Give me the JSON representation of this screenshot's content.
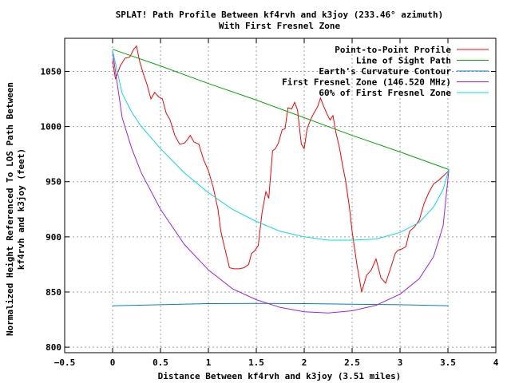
{
  "chart_data": {
    "type": "line",
    "title": "SPLAT! Path Profile Between kf4rvh and k3joy (233.46° azimuth)",
    "subtitle": "With First Fresnel Zone",
    "xlabel": "Distance Between kf4rvh and k3joy (3.51 miles)",
    "ylabel": "Normalized Height Referenced To LOS Path Between kf4rvh and k3joy (feet)",
    "xlim": [
      -0.5,
      4
    ],
    "ylim": [
      795,
      1080
    ],
    "x_ticks": [
      -0.5,
      0,
      0.5,
      1,
      1.5,
      2,
      2.5,
      3,
      3.5,
      4
    ],
    "x_tick_labels": [
      "−0.5",
      "0",
      "0.5",
      "1",
      "1.5",
      "2",
      "2.5",
      "3",
      "3.5",
      "4"
    ],
    "y_ticks": [
      800,
      850,
      900,
      950,
      1000,
      1050
    ],
    "y_tick_labels": [
      "800",
      "850",
      "900",
      "950",
      "1000",
      "1050"
    ],
    "grid": true,
    "legend_position": "top-right",
    "series": [
      {
        "name": "Point-to-Point Profile",
        "color": "#ff0000",
        "x": [
          0.0,
          0.03,
          0.08,
          0.13,
          0.18,
          0.22,
          0.25,
          0.28,
          0.32,
          0.36,
          0.4,
          0.44,
          0.48,
          0.52,
          0.56,
          0.6,
          0.65,
          0.7,
          0.75,
          0.78,
          0.81,
          0.85,
          0.9,
          0.95,
          1.0,
          1.05,
          1.1,
          1.13,
          1.17,
          1.22,
          1.27,
          1.32,
          1.37,
          1.42,
          1.45,
          1.48,
          1.52,
          1.56,
          1.6,
          1.63,
          1.67,
          1.7,
          1.73,
          1.77,
          1.8,
          1.83,
          1.87,
          1.9,
          1.93,
          1.97,
          2.0,
          2.03,
          2.07,
          2.1,
          2.14,
          2.17,
          2.2,
          2.24,
          2.27,
          2.3,
          2.33,
          2.37,
          2.4,
          2.43,
          2.47,
          2.5,
          2.55,
          2.6,
          2.65,
          2.7,
          2.75,
          2.8,
          2.85,
          2.9,
          2.95,
          2.98,
          3.02,
          3.06,
          3.1,
          3.15,
          3.2,
          3.25,
          3.3,
          3.35,
          3.4,
          3.45,
          3.51
        ],
        "y": [
          1060,
          1043,
          1055,
          1062,
          1063,
          1070,
          1073,
          1060,
          1048,
          1038,
          1025,
          1031,
          1027,
          1025,
          1012,
          1006,
          992,
          984,
          985,
          988,
          992,
          986,
          984,
          970,
          960,
          945,
          925,
          905,
          890,
          872,
          871,
          871,
          872,
          875,
          885,
          887,
          892,
          922,
          941,
          935,
          978,
          980,
          985,
          997,
          998,
          1017,
          1016,
          1022,
          1015,
          984,
          980,
          998,
          1007,
          1012,
          1018,
          1026,
          1019,
          1011,
          1006,
          1010,
          995,
          980,
          965,
          952,
          928,
          905,
          875,
          850,
          865,
          870,
          880,
          863,
          858,
          871,
          885,
          888,
          889,
          891,
          905,
          909,
          915,
          930,
          940,
          948,
          951,
          955,
          960
        ]
      },
      {
        "name": "Line of Sight Path",
        "color": "#00aa00",
        "x": [
          0,
          0.5,
          1,
          1.5,
          2,
          2.5,
          3,
          3.51
        ],
        "y": [
          1070,
          1055,
          1039,
          1024,
          1008,
          992,
          977,
          961
        ]
      },
      {
        "name": "Earth's Curvature Contour",
        "color": "#0080c0",
        "x": [
          0,
          0.5,
          1,
          1.5,
          2,
          2.5,
          3,
          3.51
        ],
        "y": [
          837.5,
          838.5,
          839.5,
          839.6,
          839.5,
          839.0,
          838.5,
          837.5
        ]
      },
      {
        "name": "First Fresnel Zone (146.520 MHz)",
        "color": "#a020f0",
        "x": [
          0,
          0.1,
          0.2,
          0.3,
          0.5,
          0.75,
          1.0,
          1.25,
          1.5,
          1.75,
          2.0,
          2.25,
          2.5,
          2.75,
          3.0,
          3.2,
          3.35,
          3.45,
          3.51
        ],
        "y": [
          1068,
          1008,
          980,
          958,
          925,
          893,
          870,
          853,
          843,
          836,
          832,
          831,
          833,
          838,
          848,
          862,
          882,
          910,
          961
        ]
      },
      {
        "name": "60% of First Fresnel Zone",
        "color": "#00e0e0",
        "x": [
          0,
          0.1,
          0.2,
          0.3,
          0.5,
          0.75,
          1.0,
          1.25,
          1.5,
          1.75,
          2.0,
          2.25,
          2.5,
          2.75,
          3.0,
          3.2,
          3.35,
          3.45,
          3.51
        ],
        "y": [
          1069,
          1030,
          1013,
          1000,
          980,
          958,
          940,
          925,
          914,
          905,
          900,
          897,
          897,
          898,
          904,
          913,
          927,
          943,
          961
        ]
      }
    ]
  }
}
